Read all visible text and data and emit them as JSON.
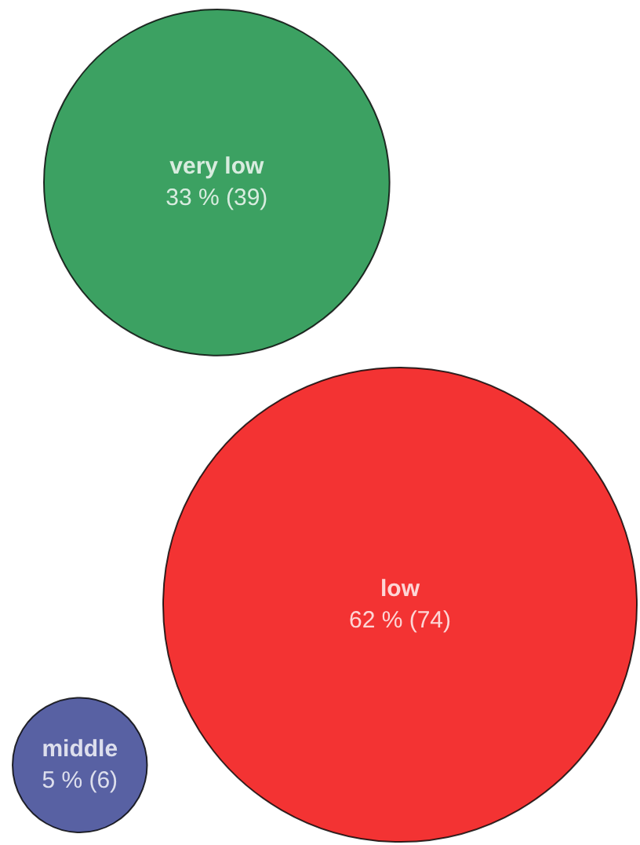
{
  "chart_data": {
    "type": "other",
    "categories": [
      "very low",
      "low",
      "middle"
    ],
    "values": [
      33,
      62,
      5
    ],
    "value_labels": [
      "33 % (39)",
      "62 % (74)",
      "5 % (6)"
    ],
    "colors": [
      "#0b8a3b",
      "#f00000",
      "#2e3a8c"
    ]
  }
}
